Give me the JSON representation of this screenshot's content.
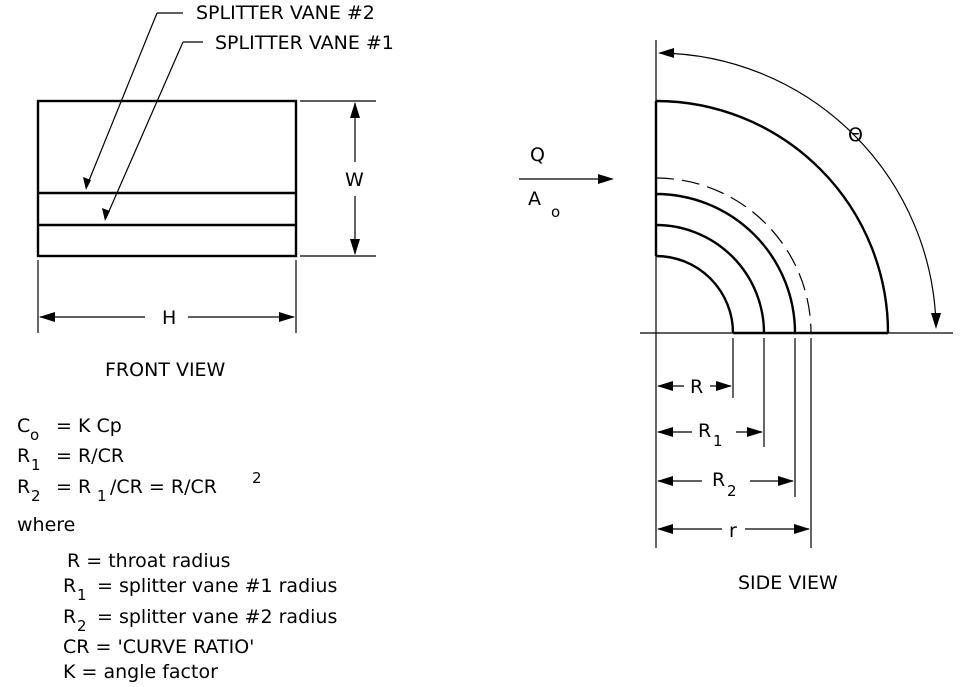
{
  "front": {
    "vane2_label": "SPLITTER VANE #2",
    "vane1_label": "SPLITTER VANE #1",
    "width_label": "W",
    "height_label": "H",
    "caption": "FRONT VIEW"
  },
  "side": {
    "flow_q": "Q",
    "flow_a": "A",
    "flow_a_sub": "o",
    "angle_label": "Θ",
    "r_label": "R",
    "r1_label": "R",
    "r1_sub": "1",
    "r2_label": "R",
    "r2_sub": "2",
    "small_r_label": "r",
    "caption": "SIDE VIEW"
  },
  "equations": {
    "co_c": "C",
    "co_sub": "o",
    "co_rhs": "= K  Cp",
    "r1_lhs": "R",
    "r1_sub": "1",
    "r1_rhs": "= R/CR",
    "r2_lhs": "R",
    "r2_sub": "2",
    "r2_mid": "= R",
    "r2_mid_sub": "1",
    "r2_rhs": "/CR = R/CR",
    "r2_sup": "2",
    "where": "where"
  },
  "definitions": {
    "d1": "R  =  throat radius",
    "d2_lhs": "R",
    "d2_sub": "1",
    "d2_rhs": "=  splitter vane #1 radius",
    "d3_lhs": "R",
    "d3_sub": "2",
    "d3_rhs": "=  splitter vane #2 radius",
    "d4": "CR  =  'CURVE RATIO'",
    "d5": "K  =  angle factor"
  }
}
